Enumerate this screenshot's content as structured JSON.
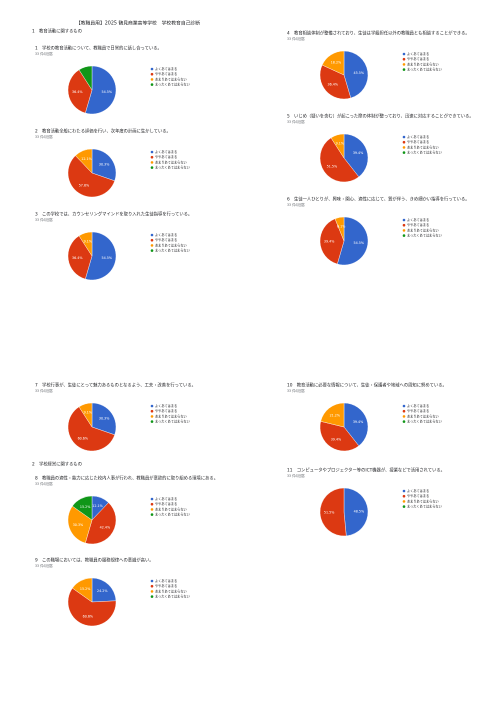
{
  "title": "【教職員用】2025 鶴見商業高等学校　学校教育自己診断",
  "sections": [
    {
      "heading": "1　教育活動に関するもの"
    },
    {
      "heading": "2　学校経営に関するもの"
    }
  ],
  "legend": {
    "labels": [
      "よくあてはまる",
      "ややあてはまる",
      "あまりあてはまらない",
      "まったくあてはまらない"
    ],
    "colors": [
      "#3366cc",
      "#dc3912",
      "#ff9900",
      "#109618"
    ]
  },
  "questions": [
    {
      "question": "1　学校の教育活動について、教職員で日常的に話し合っている。",
      "responses": "33 件の回答",
      "values": [
        54.5,
        36.4,
        0,
        9.1
      ],
      "value_labels": [
        "54.5%",
        "36.4%",
        null,
        null
      ]
    },
    {
      "question": "2　教育活動全般にわたる評価を行い、次年度の計画に生かしている。",
      "responses": "33 件の回答",
      "values": [
        30.3,
        57.6,
        12.1,
        0
      ],
      "value_labels": [
        "30.3%",
        "57.6%",
        "12.1%",
        null
      ]
    },
    {
      "question": "3　この学校では、カウンセリングマインドを取り入れた生徒指導を行っている。",
      "responses": "33 件の回答",
      "values": [
        54.5,
        36.4,
        9.1,
        0
      ],
      "value_labels": [
        "54.5%",
        "36.4%",
        "9.1%",
        null
      ]
    },
    {
      "question": "4　教育相談体制が整備されており、生徒は学級担任以外の教職員とも相談することができる。",
      "responses": "33 件の回答",
      "values": [
        45.5,
        36.4,
        18.2,
        0
      ],
      "value_labels": [
        "45.5%",
        "36.4%",
        "18.2%",
        null
      ]
    },
    {
      "question": "5　いじめ（疑いを含む）が起こった際の体制が整っており、迅速に対応することができている。",
      "responses": "33 件の回答",
      "values": [
        39.4,
        51.5,
        9.1,
        0
      ],
      "value_labels": [
        "39.4%",
        "51.5%",
        "9.1%",
        null
      ]
    },
    {
      "question": "6　生徒一人ひとりが、興味・関心、適性に応じて、質が伴う、きめ細かい指導を行っている。",
      "responses": "33 件の回答",
      "values": [
        54.5,
        39.4,
        6.1,
        0
      ],
      "value_labels": [
        "54.5%",
        "39.4%",
        "6.1%",
        null
      ]
    },
    {
      "question": "7　学校行事が、生徒にとって魅力あるものとなるよう、工夫・改善を行っている。",
      "responses": "33 件の回答",
      "values": [
        30.3,
        60.6,
        9.1,
        0
      ],
      "value_labels": [
        "30.3%",
        "60.6%",
        "9.1%",
        null
      ]
    },
    {
      "question": "8　教職員の適性・能力に応じた校内人事が行われ、教職員が意欲的に取り組める環境にある。",
      "responses": "33 件の回答",
      "values": [
        12.1,
        42.4,
        30.3,
        15.2
      ],
      "value_labels": [
        "12.1%",
        "42.4%",
        "30.3%",
        "15.2%"
      ]
    },
    {
      "question": "9　この職場においては、教職員の服務規律への意識が高い。",
      "responses": "33 件の回答",
      "values": [
        24.2,
        60.6,
        15.2,
        0
      ],
      "value_labels": [
        "24.2%",
        "60.6%",
        "15.2%",
        null
      ]
    },
    {
      "question": "10　教育活動に必要な情報について、生徒・保護者や地域への周知に努めている。",
      "responses": "33 件の回答",
      "values": [
        39.4,
        39.4,
        21.2,
        0
      ],
      "value_labels": [
        "39.4%",
        "39.4%",
        "21.2%",
        null
      ]
    },
    {
      "question": "11　コンピュータやプロジェクター等のICT機器が、授業などで活用されている。",
      "responses": "33 件の回答",
      "values": [
        48.5,
        51.5,
        0,
        0
      ],
      "value_labels": [
        "48.5%",
        "51.5%",
        null,
        null
      ]
    }
  ]
}
